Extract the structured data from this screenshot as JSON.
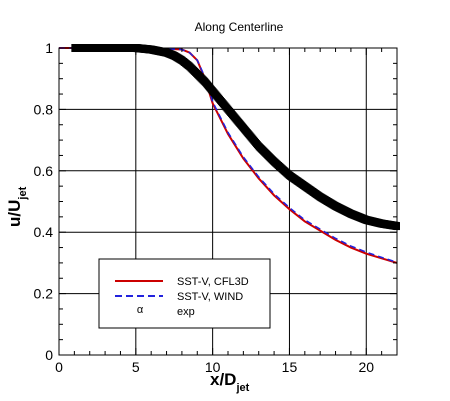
{
  "chart_data": {
    "type": "line",
    "title": "Along Centerline",
    "xlabel": {
      "main": "x/D",
      "sub": "jet"
    },
    "ylabel": {
      "main": "u/U",
      "sub": "jet"
    },
    "xlim": [
      0,
      22
    ],
    "ylim": [
      0,
      1
    ],
    "xticks": [
      0,
      5,
      10,
      15,
      20
    ],
    "yticks": [
      0,
      0.2,
      0.4,
      0.6,
      0.8,
      1
    ],
    "grid": true,
    "legend_position": "lower-left",
    "series": [
      {
        "name": "SST-V, CFL3D",
        "style": "solid",
        "color": "#cc0000",
        "x": [
          0,
          2,
          4,
          6,
          8,
          8.5,
          9,
          9.5,
          10,
          11,
          12,
          13,
          14,
          15,
          16,
          17,
          18,
          19,
          20,
          21,
          22
        ],
        "y": [
          1.0,
          1.0,
          1.0,
          1.0,
          0.995,
          0.985,
          0.96,
          0.9,
          0.82,
          0.72,
          0.64,
          0.575,
          0.52,
          0.475,
          0.435,
          0.405,
          0.375,
          0.35,
          0.33,
          0.315,
          0.3
        ]
      },
      {
        "name": "SST-V, WIND",
        "style": "dashed",
        "color": "#2222dd",
        "x": [
          0,
          2,
          4,
          6,
          8,
          8.5,
          9,
          9.5,
          10,
          11,
          12,
          13,
          14,
          15,
          16,
          17,
          18,
          19,
          20,
          21,
          22
        ],
        "y": [
          1.0,
          1.0,
          1.0,
          1.0,
          0.995,
          0.985,
          0.96,
          0.905,
          0.825,
          0.725,
          0.645,
          0.58,
          0.525,
          0.48,
          0.44,
          0.41,
          0.38,
          0.355,
          0.335,
          0.318,
          0.302
        ]
      },
      {
        "name": "exp",
        "style": "markers",
        "color": "#000000",
        "x": [
          0,
          1,
          2,
          3,
          4,
          5,
          6,
          7,
          7.5,
          8,
          8.5,
          9,
          9.5,
          10,
          10.5,
          11,
          12,
          13,
          14,
          15,
          16,
          17,
          18,
          19,
          20,
          21,
          22
        ],
        "y": [
          1.0,
          1.0,
          1.0,
          1.0,
          1.0,
          1.0,
          0.995,
          0.985,
          0.975,
          0.96,
          0.94,
          0.915,
          0.89,
          0.86,
          0.83,
          0.8,
          0.74,
          0.68,
          0.63,
          0.585,
          0.55,
          0.515,
          0.485,
          0.46,
          0.44,
          0.428,
          0.42
        ]
      }
    ]
  }
}
